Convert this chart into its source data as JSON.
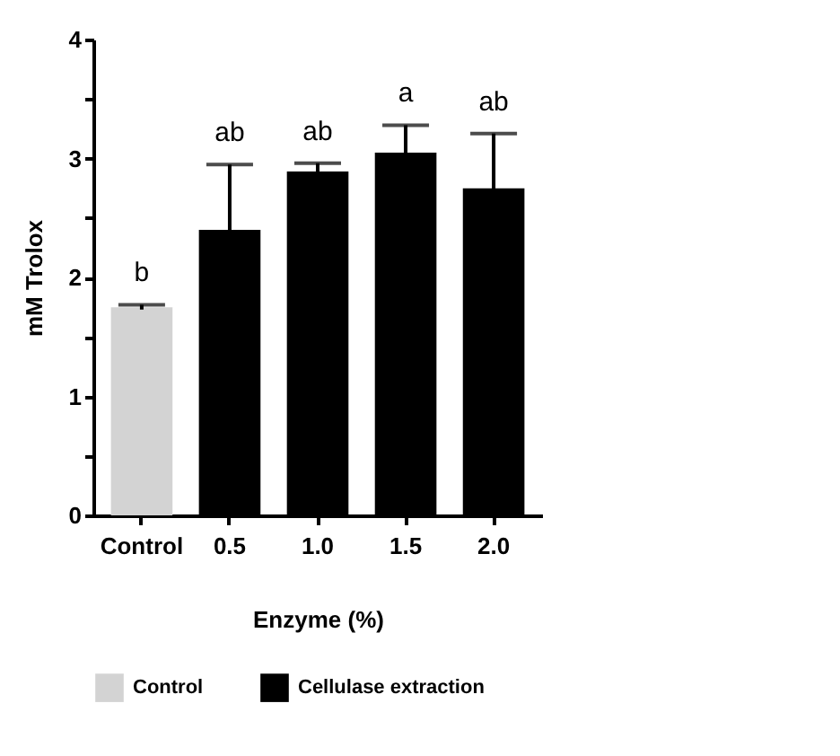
{
  "chart_data": {
    "type": "bar",
    "xlabel": "Enzyme (%)",
    "ylabel": "mM Trolox",
    "categories": [
      "Control",
      "0.5",
      "1.0",
      "1.5",
      "2.0"
    ],
    "series": [
      {
        "name": "Control",
        "color": "#d3d3d3",
        "values": [
          1.75,
          null,
          null,
          null,
          null
        ],
        "errors": [
          0.02,
          null,
          null,
          null,
          null
        ]
      },
      {
        "name": "Cellulase extraction",
        "color": "#000000",
        "values": [
          null,
          2.4,
          2.89,
          3.05,
          2.75
        ],
        "errors": [
          null,
          0.55,
          0.07,
          0.23,
          0.46
        ]
      }
    ],
    "ylim": [
      0,
      4
    ],
    "yticks": [
      0,
      {
        "value": 0.5,
        "label": null
      },
      1,
      {
        "value": 1.5,
        "label": null
      },
      2,
      {
        "value": 2.5,
        "label": null
      },
      3,
      {
        "value": 3.5,
        "label": null
      },
      4
    ],
    "annotations": [
      {
        "text": "b",
        "x": "Control",
        "y": 1.77
      },
      {
        "text": "ab",
        "x": "0.5",
        "y": 2.95
      },
      {
        "text": "ab",
        "x": "1.0",
        "y": 2.96
      },
      {
        "text": "a",
        "x": "1.5",
        "y": 3.28
      },
      {
        "text": "ab",
        "x": "2.0",
        "y": 3.21
      }
    ],
    "grid": false,
    "legend": "bottom"
  }
}
